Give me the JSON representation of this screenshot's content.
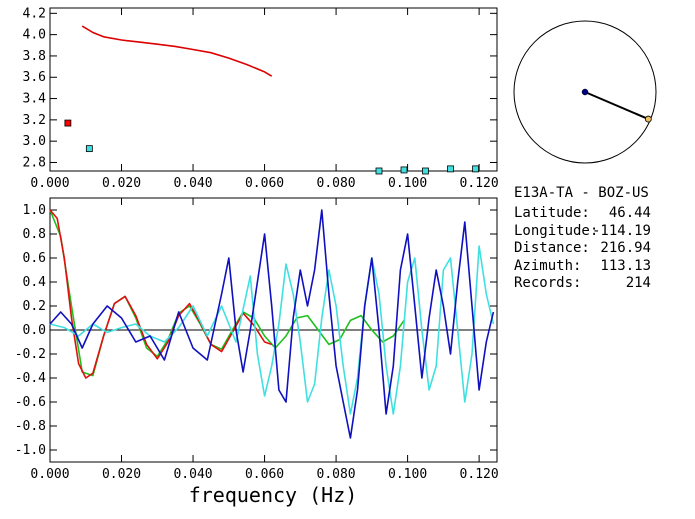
{
  "station": {
    "title": "E13A-TA - BOZ-US",
    "fields": [
      {
        "label": "Latitude:",
        "value": "46.44"
      },
      {
        "label": "Longitude:",
        "value": "-114.19"
      },
      {
        "label": "Distance:",
        "value": "216.94"
      },
      {
        "label": "Azimuth:",
        "value": "113.13"
      },
      {
        "label": "Records:",
        "value": "214"
      }
    ]
  },
  "azimuth_dial": {
    "azimuth_deg": 113.13,
    "inner_point_radius_fraction": 0.0,
    "outer_point_radius_fraction": 0.97,
    "colors": {
      "circle": "#000000",
      "needle": "#000000",
      "center_dot": "#000080",
      "tip_dot": "#f0c060"
    }
  },
  "chart_data": [
    {
      "type": "scatter",
      "title": "",
      "xlabel": "",
      "ylabel": "",
      "xlim": [
        0.0,
        0.125
      ],
      "ylim": [
        2.72,
        4.25
      ],
      "x_ticks": [
        "0.000",
        "0.020",
        "0.040",
        "0.060",
        "0.080",
        "0.100",
        "0.120"
      ],
      "x_tick_values": [
        0.0,
        0.02,
        0.04,
        0.06,
        0.08,
        0.1,
        0.12
      ],
      "y_ticks": [
        "2.8",
        "3.0",
        "3.2",
        "3.4",
        "3.6",
        "3.8",
        "4.0",
        "4.2"
      ],
      "y_tick_values": [
        2.8,
        3.0,
        3.2,
        3.4,
        3.6,
        3.8,
        4.0,
        4.2
      ],
      "series": [
        {
          "kind": "line",
          "color": "#dd0000",
          "x": [
            0.009,
            0.012,
            0.015,
            0.02,
            0.025,
            0.03,
            0.035,
            0.04,
            0.045,
            0.05,
            0.055,
            0.06,
            0.062
          ],
          "y": [
            4.08,
            4.02,
            3.98,
            3.95,
            3.93,
            3.91,
            3.89,
            3.86,
            3.83,
            3.78,
            3.72,
            3.65,
            3.61
          ]
        },
        {
          "kind": "markers",
          "color": "#ff0000",
          "x": [
            0.005
          ],
          "y": [
            3.17
          ]
        },
        {
          "kind": "markers",
          "color": "#40e0e0",
          "x": [
            0.011,
            0.092,
            0.099,
            0.105,
            0.112,
            0.119
          ],
          "y": [
            2.93,
            2.72,
            2.73,
            2.72,
            2.74,
            2.74
          ]
        }
      ]
    },
    {
      "type": "line",
      "title": "",
      "xlabel": "frequency (Hz)",
      "ylabel": "",
      "xlim": [
        0.0,
        0.125
      ],
      "ylim": [
        -1.1,
        1.1
      ],
      "x_ticks": [
        "0.000",
        "0.020",
        "0.040",
        "0.060",
        "0.080",
        "0.100",
        "0.120"
      ],
      "x_tick_values": [
        0.0,
        0.02,
        0.04,
        0.06,
        0.08,
        0.1,
        0.12
      ],
      "y_ticks": [
        "-1.0",
        "-0.8",
        "-0.6",
        "-0.4",
        "-0.2",
        "0.0",
        "0.2",
        "0.4",
        "0.6",
        "0.8",
        "1.0"
      ],
      "y_tick_values": [
        -1.0,
        -0.8,
        -0.6,
        -0.4,
        -0.2,
        0.0,
        0.2,
        0.4,
        0.6,
        0.8,
        1.0
      ],
      "zero_line": true,
      "series": [
        {
          "color": "#20c020",
          "x": [
            0.0,
            0.003,
            0.006,
            0.009,
            0.012,
            0.015,
            0.018,
            0.021,
            0.024,
            0.027,
            0.03,
            0.033,
            0.036,
            0.039,
            0.042,
            0.045,
            0.048,
            0.051,
            0.054,
            0.057,
            0.06,
            0.063,
            0.066,
            0.069,
            0.072,
            0.075,
            0.078,
            0.081,
            0.084,
            0.087,
            0.09,
            0.093,
            0.096,
            0.099
          ],
          "y": [
            1.0,
            0.78,
            0.2,
            -0.35,
            -0.38,
            -0.05,
            0.22,
            0.28,
            0.1,
            -0.15,
            -0.22,
            -0.08,
            0.14,
            0.2,
            0.05,
            -0.12,
            -0.16,
            0.0,
            0.15,
            0.1,
            -0.05,
            -0.15,
            -0.05,
            0.1,
            0.12,
            0.0,
            -0.12,
            -0.08,
            0.08,
            0.12,
            0.0,
            -0.1,
            -0.05,
            0.08
          ]
        },
        {
          "color": "#e01010",
          "x": [
            0.0,
            0.002,
            0.004,
            0.006,
            0.008,
            0.01,
            0.012,
            0.015,
            0.018,
            0.021,
            0.024,
            0.027,
            0.03,
            0.033,
            0.036,
            0.039,
            0.042,
            0.045,
            0.048,
            0.051,
            0.054,
            0.057,
            0.06,
            0.062
          ],
          "y": [
            1.0,
            0.93,
            0.6,
            0.1,
            -0.28,
            -0.4,
            -0.36,
            -0.05,
            0.22,
            0.28,
            0.12,
            -0.12,
            -0.24,
            -0.1,
            0.12,
            0.22,
            0.06,
            -0.12,
            -0.18,
            -0.02,
            0.14,
            0.04,
            -0.1,
            -0.12
          ]
        },
        {
          "color": "#40e0e0",
          "x": [
            0.0,
            0.004,
            0.008,
            0.012,
            0.016,
            0.02,
            0.024,
            0.028,
            0.032,
            0.036,
            0.04,
            0.044,
            0.048,
            0.052,
            0.056,
            0.058,
            0.06,
            0.062,
            0.064,
            0.066,
            0.068,
            0.07,
            0.072,
            0.074,
            0.076,
            0.078,
            0.08,
            0.082,
            0.084,
            0.086,
            0.088,
            0.09,
            0.092,
            0.094,
            0.096,
            0.098,
            0.1,
            0.102,
            0.104,
            0.106,
            0.108,
            0.11,
            0.112,
            0.114,
            0.116,
            0.118,
            0.12,
            0.122,
            0.124
          ],
          "y": [
            0.05,
            0.02,
            -0.05,
            0.05,
            -0.02,
            0.02,
            0.05,
            -0.05,
            -0.1,
            0.02,
            0.2,
            -0.05,
            0.2,
            -0.1,
            0.45,
            -0.2,
            -0.55,
            -0.3,
            0.05,
            0.55,
            0.3,
            -0.1,
            -0.6,
            -0.45,
            0.1,
            0.5,
            0.2,
            -0.3,
            -0.7,
            -0.4,
            0.2,
            0.6,
            0.3,
            -0.3,
            -0.7,
            -0.3,
            0.4,
            0.6,
            0.0,
            -0.5,
            -0.3,
            0.5,
            0.6,
            0.0,
            -0.6,
            -0.2,
            0.7,
            0.3,
            0.05
          ]
        },
        {
          "color": "#1010c0",
          "x": [
            0.0,
            0.003,
            0.006,
            0.009,
            0.012,
            0.016,
            0.02,
            0.024,
            0.028,
            0.032,
            0.036,
            0.04,
            0.044,
            0.048,
            0.05,
            0.052,
            0.054,
            0.056,
            0.058,
            0.06,
            0.062,
            0.064,
            0.066,
            0.068,
            0.07,
            0.072,
            0.074,
            0.076,
            0.078,
            0.08,
            0.082,
            0.084,
            0.086,
            0.088,
            0.09,
            0.092,
            0.094,
            0.096,
            0.098,
            0.1,
            0.102,
            0.104,
            0.106,
            0.108,
            0.11,
            0.112,
            0.114,
            0.116,
            0.118,
            0.12,
            0.122,
            0.124
          ],
          "y": [
            0.05,
            0.15,
            0.05,
            -0.15,
            0.05,
            0.2,
            0.1,
            -0.1,
            -0.05,
            -0.25,
            0.15,
            -0.15,
            -0.25,
            0.3,
            0.6,
            0.0,
            -0.35,
            0.0,
            0.4,
            0.8,
            0.2,
            -0.5,
            -0.6,
            0.1,
            0.5,
            0.2,
            0.5,
            1.0,
            0.3,
            -0.3,
            -0.6,
            -0.9,
            -0.5,
            0.2,
            0.6,
            0.0,
            -0.7,
            -0.3,
            0.5,
            0.8,
            0.2,
            -0.4,
            0.1,
            0.5,
            0.2,
            -0.2,
            0.4,
            0.9,
            0.2,
            -0.5,
            -0.1,
            0.15
          ]
        }
      ]
    }
  ]
}
